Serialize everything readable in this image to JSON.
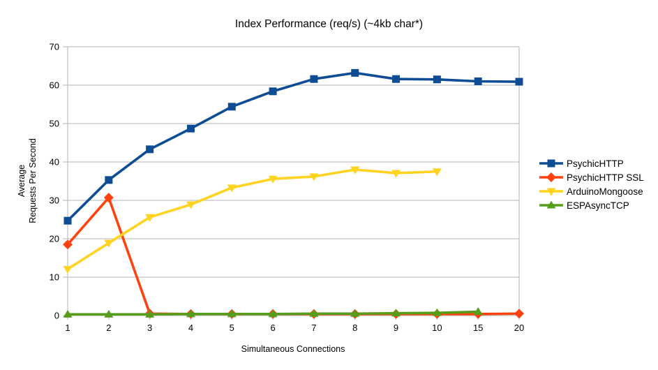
{
  "chart_data": {
    "type": "line",
    "title": "Index Performance (req/s) (~4kb char*)",
    "xlabel": "Simultaneous Connections",
    "ylabel": "Average Requests Per Second",
    "ylabel_lines": [
      "Average",
      "Requests Per Second"
    ],
    "categories": [
      "1",
      "2",
      "3",
      "4",
      "5",
      "6",
      "7",
      "8",
      "9",
      "10",
      "15",
      "20"
    ],
    "y_ticks": [
      0,
      10,
      20,
      30,
      40,
      50,
      60,
      70
    ],
    "ylim": [
      0,
      70
    ],
    "grid": "horizontal",
    "legend_position": "right",
    "colors": {
      "grid": "#b3b3b3",
      "axis": "#b3b3b3",
      "text": "#000000"
    },
    "series": [
      {
        "name": "PsychicHTTP",
        "color": "#0E4C94",
        "marker": "square",
        "values": [
          24.7,
          35.3,
          43.3,
          48.7,
          54.4,
          58.4,
          61.6,
          63.2,
          61.6,
          61.5,
          61.0,
          60.9
        ]
      },
      {
        "name": "PsychicHTTP SSL",
        "color": "#FF420E",
        "marker": "diamond",
        "values": [
          18.5,
          30.7,
          0.5,
          0.4,
          0.4,
          0.4,
          0.4,
          0.4,
          0.4,
          0.4,
          0.4,
          0.5
        ]
      },
      {
        "name": "ArduinoMongoose",
        "color": "#FFD320",
        "marker": "triangle-down",
        "values": [
          12.1,
          18.9,
          25.6,
          28.9,
          33.3,
          35.6,
          36.2,
          38.0,
          37.1,
          37.5,
          null,
          null
        ]
      },
      {
        "name": "ESPAsyncTCP",
        "color": "#579D1C",
        "marker": "triangle-up",
        "values": [
          0.3,
          0.3,
          0.3,
          0.4,
          0.4,
          0.4,
          0.5,
          0.5,
          0.6,
          0.7,
          1.0,
          null
        ]
      }
    ]
  }
}
